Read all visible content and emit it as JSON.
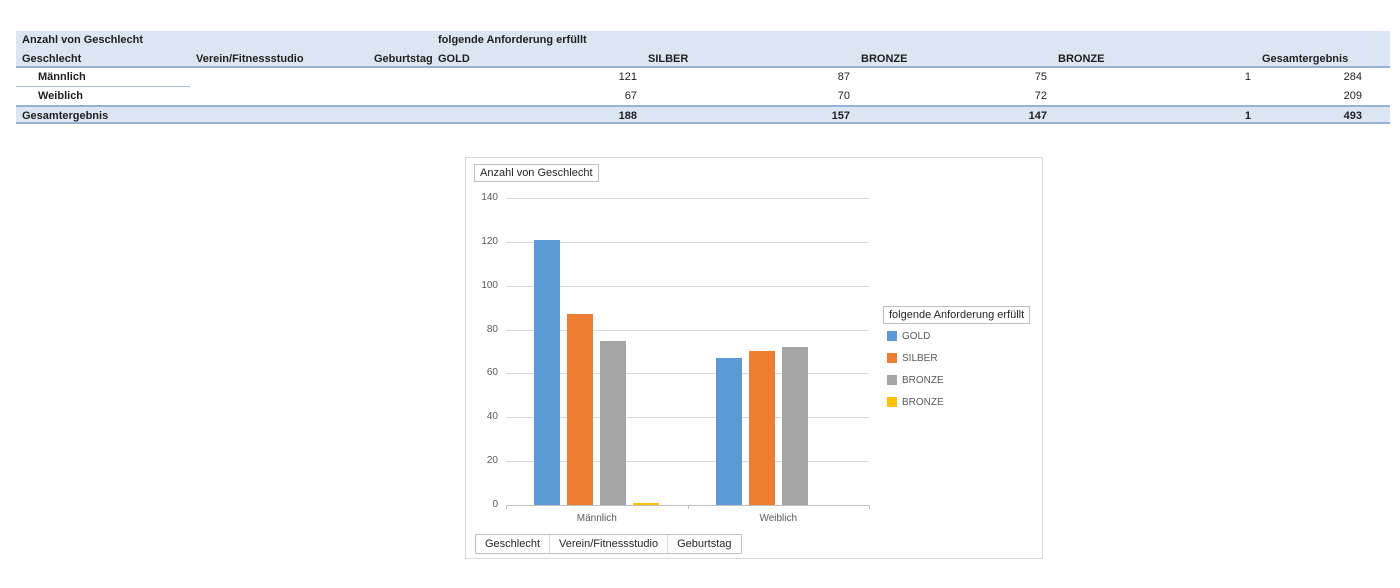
{
  "table": {
    "filter_row": {
      "count_label": "Anzahl von Geschlecht",
      "requirement_label": "folgende Anforderung erfüllt"
    },
    "columns": [
      "Geschlecht",
      "Verein/Fitnessstudio",
      "Geburtstag",
      "GOLD",
      "SILBER",
      "BRONZE",
      "BRONZE",
      "Gesamtergebnis"
    ],
    "rows": [
      {
        "label": "Männlich",
        "values": [
          "121",
          "87",
          "75",
          "1",
          "284"
        ]
      },
      {
        "label": "Weiblich",
        "values": [
          "67",
          "70",
          "72",
          "",
          "209"
        ]
      }
    ],
    "total_row": {
      "label": "Gesamtergebnis",
      "values": [
        "188",
        "157",
        "147",
        "1",
        "493"
      ]
    }
  },
  "chart_data": {
    "type": "bar",
    "title": "Anzahl von Geschlecht",
    "value_field_button": "Anzahl von Geschlecht",
    "legend_title": "folgende Anforderung erfüllt",
    "legend_position": "right",
    "categories": [
      "Männlich",
      "Weiblich"
    ],
    "series": [
      {
        "name": "GOLD",
        "values": [
          121,
          67
        ],
        "color": "#5B9BD5"
      },
      {
        "name": "SILBER",
        "values": [
          87,
          70
        ],
        "color": "#ED7D31"
      },
      {
        "name": "BRONZE",
        "values": [
          75,
          72
        ],
        "color": "#A5A5A5"
      },
      {
        "name": "BRONZE",
        "values": [
          1,
          0
        ],
        "color": "#FFC000"
      }
    ],
    "xlabel": "",
    "ylabel": "",
    "ylim": [
      0,
      140
    ],
    "ytick_step": 20,
    "grid": true,
    "axis_field_buttons": [
      "Geschlecht",
      "Verein/Fitnessstudio",
      "Geburtstag"
    ]
  },
  "colors": {
    "table_band": "#DCE6F2",
    "table_border": "#95B3D7",
    "table_row_line": "#A9C1DE",
    "grid_line": "#D9D9D9",
    "axis_line": "#BFBFBF",
    "axis_text": "#595959",
    "button_border": "#BFBFBF"
  }
}
